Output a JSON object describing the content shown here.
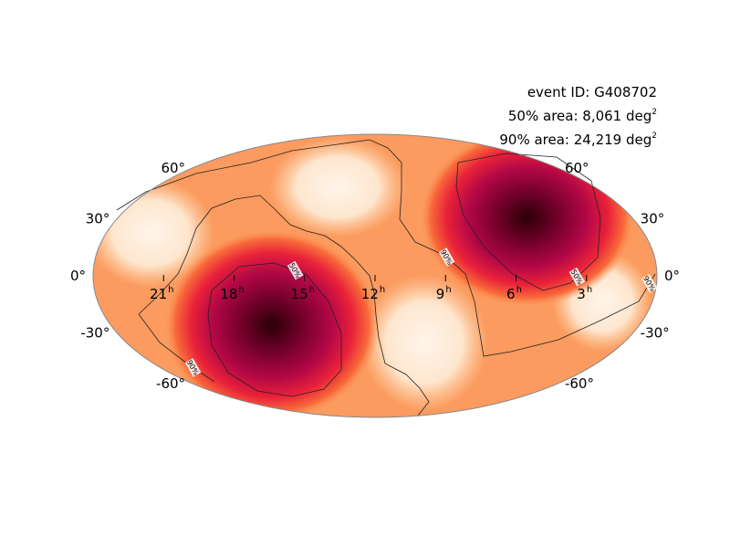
{
  "event": {
    "id_label": "event ID: G408702",
    "area50_text": "50% area: 8,061 deg",
    "area90_text": "90% area: 24,219 deg",
    "superscript": "2"
  },
  "chart_data": {
    "type": "heatmap",
    "projection": "mollweide",
    "title": "",
    "ra_ticks": [
      {
        "label": "21",
        "hours": 21
      },
      {
        "label": "18",
        "hours": 18
      },
      {
        "label": "15",
        "hours": 15
      },
      {
        "label": "12",
        "hours": 12
      },
      {
        "label": "9",
        "hours": 9
      },
      {
        "label": "6",
        "hours": 6
      },
      {
        "label": "3",
        "hours": 3
      }
    ],
    "ra_unit": "h",
    "dec_ticks": [
      {
        "label": "60°",
        "deg": 60
      },
      {
        "label": "30°",
        "deg": 30
      },
      {
        "label": "0°",
        "deg": 0
      },
      {
        "label": "-30°",
        "deg": -30
      },
      {
        "label": "-60°",
        "deg": -60
      }
    ],
    "contour_labels": [
      "50%",
      "90%"
    ],
    "peaks": [
      {
        "ra_hours": 4.8,
        "dec_deg": 33
      },
      {
        "ra_hours": 16.5,
        "dec_deg": -30
      }
    ],
    "colormap": [
      "#fff5eb",
      "#fdd2a5",
      "#fd9c5c",
      "#f05030",
      "#d4143c",
      "#a00045",
      "#5a0020",
      "#2a0006"
    ]
  }
}
